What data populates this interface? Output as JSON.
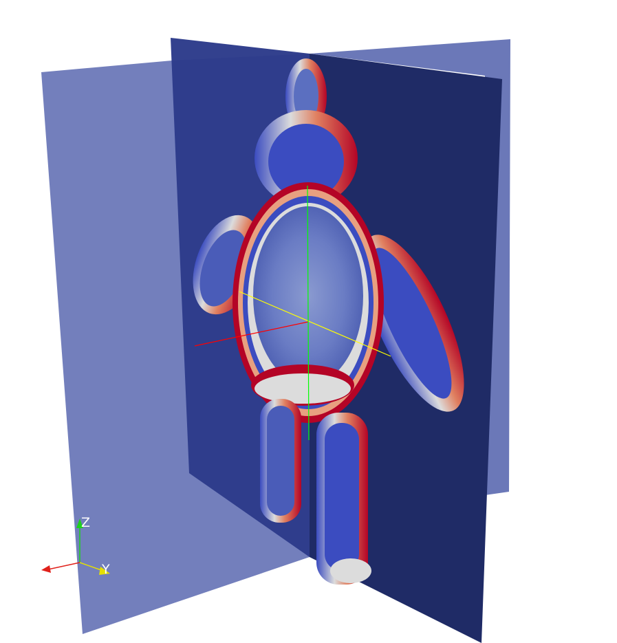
{
  "viewport": {
    "background": "#ffffff"
  },
  "scene": {
    "planes": [
      {
        "name": "slice-plane-x",
        "color": "#6b78b8",
        "opacity": 1.0
      },
      {
        "name": "slice-plane-y",
        "color": "#2c3b8a",
        "opacity": 0.95
      },
      {
        "name": "slice-plane-z-back",
        "color": "#1f2b66"
      }
    ],
    "colormap": {
      "name": "cool-to-warm",
      "low": "#3b4cc0",
      "mid": "#dcdcdc",
      "high": "#b40426"
    },
    "center_axes": {
      "x_color": "#ff0000",
      "y_color": "#ffff00",
      "z_color": "#00ff00"
    }
  },
  "orientation_axes": {
    "x_label": "",
    "y_label": "Y",
    "z_label": "Z",
    "x_color": "#e0201a",
    "y_color": "#e6e000",
    "z_color": "#1ed01e",
    "label_color": "#ffffff"
  }
}
